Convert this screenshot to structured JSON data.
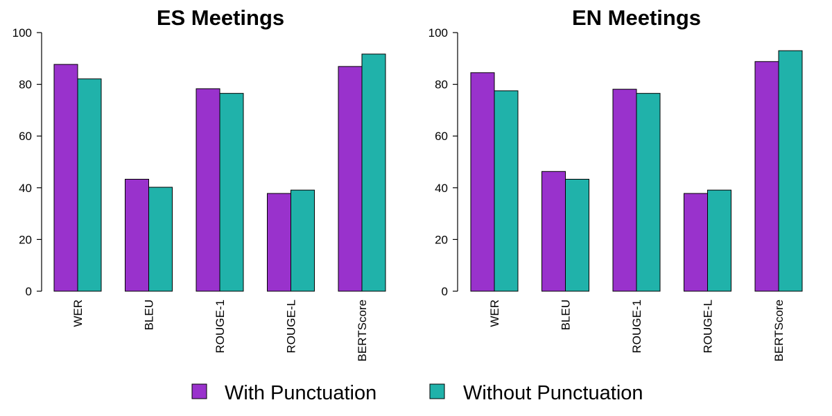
{
  "chart_data": [
    {
      "type": "bar",
      "title": "ES Meetings",
      "categories": [
        "WER",
        "BLEU",
        "ROUGE-1",
        "ROUGE-L",
        "BERTScore"
      ],
      "series": [
        {
          "name": "With Punctuation",
          "values": [
            87.7,
            43.3,
            78.3,
            37.8,
            86.9
          ],
          "color": "#9932CC"
        },
        {
          "name": "Without Punctuation",
          "values": [
            82.1,
            40.2,
            76.5,
            39.1,
            91.7
          ],
          "color": "#20B2AA"
        }
      ],
      "ylim": [
        0,
        100
      ],
      "yticks": [
        0,
        20,
        40,
        60,
        80,
        100
      ],
      "xlabel": "",
      "ylabel": ""
    },
    {
      "type": "bar",
      "title": "EN Meetings",
      "categories": [
        "WER",
        "BLEU",
        "ROUGE-1",
        "ROUGE-L",
        "BERTScore"
      ],
      "series": [
        {
          "name": "With Punctuation",
          "values": [
            84.5,
            46.3,
            78.1,
            37.8,
            88.8
          ],
          "color": "#9932CC"
        },
        {
          "name": "Without Punctuation",
          "values": [
            77.5,
            43.3,
            76.5,
            39.1,
            93.0
          ],
          "color": "#20B2AA"
        }
      ],
      "ylim": [
        0,
        100
      ],
      "yticks": [
        0,
        20,
        40,
        60,
        80,
        100
      ],
      "xlabel": "",
      "ylabel": ""
    }
  ],
  "legend": {
    "placement": "bottom-center",
    "items": [
      {
        "label": "With Punctuation",
        "color": "#9932CC"
      },
      {
        "label": "Without Punctuation",
        "color": "#20B2AA"
      }
    ]
  }
}
